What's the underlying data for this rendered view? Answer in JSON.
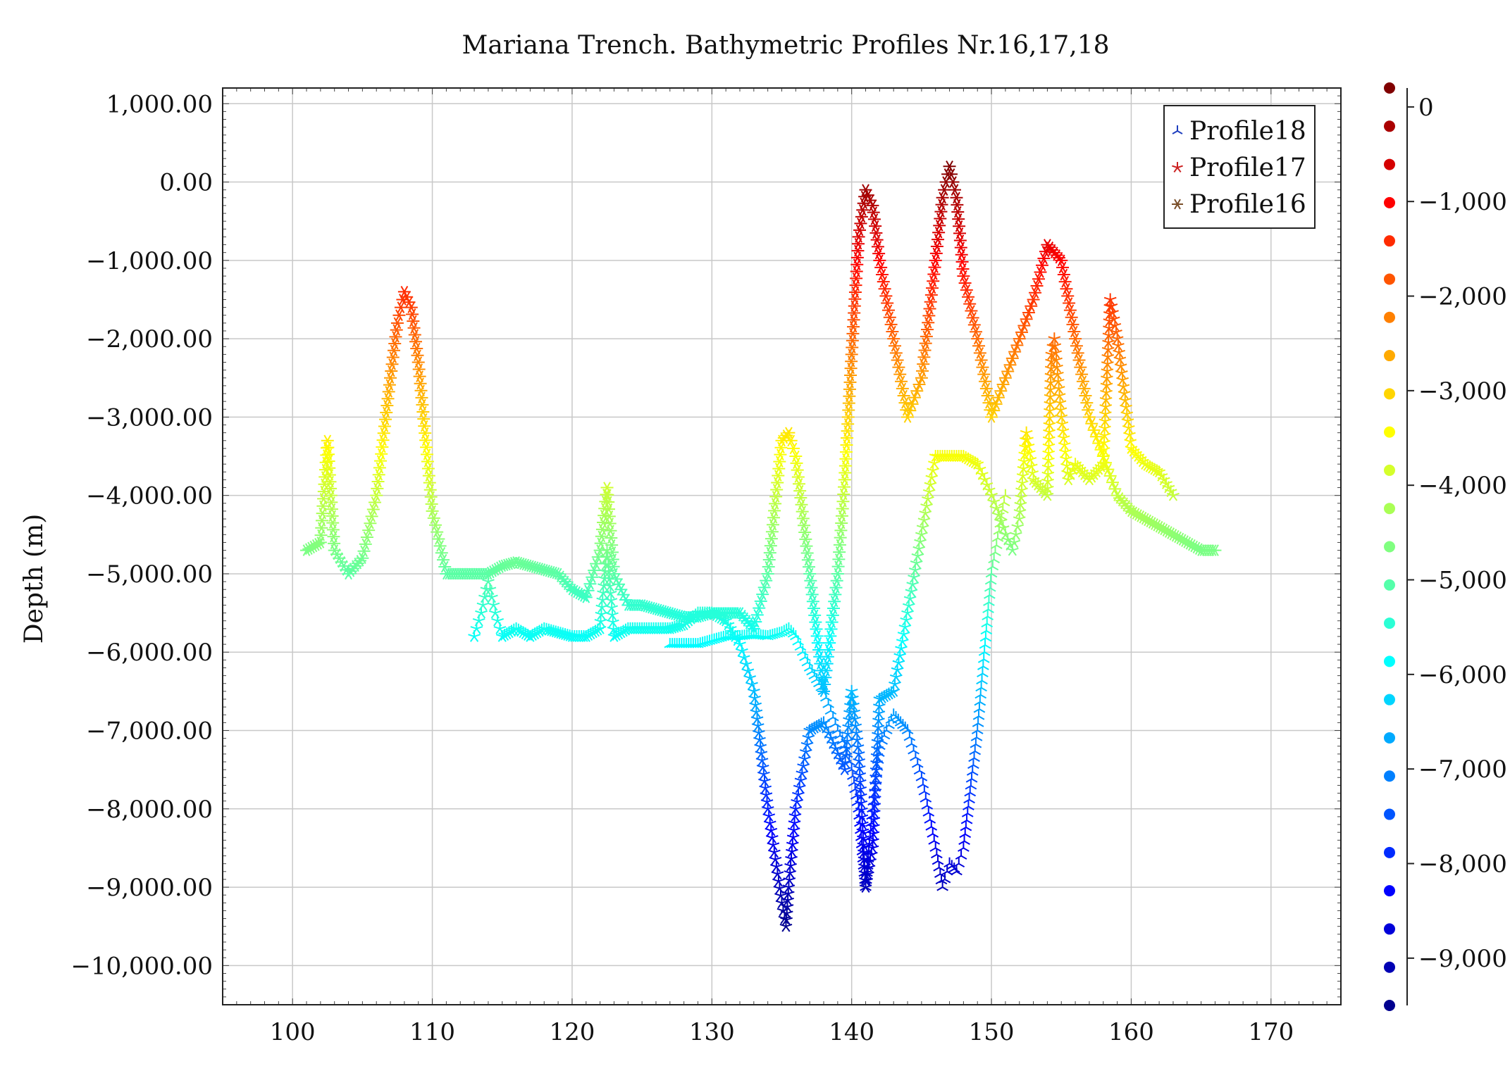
{
  "chart_data": {
    "type": "scatter",
    "title": "Mariana Trench. Bathymetric Profiles Nr.16,17,18",
    "xlabel": "",
    "ylabel": "Depth (m)",
    "xlim": [
      95,
      175
    ],
    "ylim": [
      -10500,
      1200
    ],
    "x_ticks": [
      100,
      110,
      120,
      130,
      140,
      150,
      160,
      170
    ],
    "x_tick_labels": [
      "100",
      "110",
      "120",
      "130",
      "140",
      "150",
      "160",
      "170"
    ],
    "y_ticks": [
      1000,
      0,
      -1000,
      -2000,
      -3000,
      -4000,
      -5000,
      -6000,
      -7000,
      -8000,
      -9000,
      -10000
    ],
    "y_tick_labels": [
      "1,000.00",
      "0.00",
      "−1,000.00",
      "−2,000.00",
      "−3,000.00",
      "−4,000.00",
      "−5,000.00",
      "−6,000.00",
      "−7,000.00",
      "−8,000.00",
      "−9,000.00",
      "−10,000.00"
    ],
    "grid": true,
    "legend_position": "top-right",
    "colormap": [
      "#00008f",
      "#0000ff",
      "#0080ff",
      "#00ffff",
      "#80ff80",
      "#ffff00",
      "#ff8000",
      "#ff0000",
      "#800000"
    ],
    "colorbar": {
      "range": [
        -9500,
        200
      ],
      "ticks": [
        0,
        -1000,
        -2000,
        -3000,
        -4000,
        -5000,
        -6000,
        -7000,
        -8000,
        -9000
      ],
      "tick_labels": [
        "0",
        "−1,000",
        "−2,000",
        "−3,000",
        "−4,000",
        "−5,000",
        "−6,000",
        "−7,000",
        "−8,000",
        "−9,000"
      ],
      "markers": 25
    },
    "series": [
      {
        "name": "Profile18",
        "marker": "tri",
        "legend_color": "#1f3fbf",
        "x": [
          127,
          128,
          129,
          130,
          131,
          132,
          133,
          134,
          135,
          135.5,
          136,
          137,
          138,
          139,
          139.5,
          140,
          140.5,
          141,
          141.5,
          142,
          143,
          144,
          145,
          146,
          146.5,
          147,
          147.5,
          148,
          149,
          150,
          151
        ],
        "y": [
          -5900,
          -5900,
          -5900,
          -5850,
          -5800,
          -5800,
          -5780,
          -5800,
          -5750,
          -5700,
          -5800,
          -6200,
          -6500,
          -7000,
          -7200,
          -7500,
          -8000,
          -9000,
          -8000,
          -7200,
          -6800,
          -7000,
          -7600,
          -8500,
          -9000,
          -8700,
          -8800,
          -8500,
          -7000,
          -5000,
          -4000
        ]
      },
      {
        "name": "Profile17",
        "marker": "star",
        "legend_color": "#cc2222",
        "x": [
          113,
          113.5,
          114,
          114.5,
          115,
          116,
          117,
          118,
          119,
          120,
          121,
          122,
          122.5,
          123,
          124,
          125,
          126,
          127,
          128,
          129,
          130,
          131,
          132,
          133,
          134,
          135,
          135.3,
          135.5,
          136,
          137,
          138,
          139,
          139.5,
          140,
          140.5,
          141,
          141.5,
          142,
          143,
          144,
          145,
          146,
          147,
          148,
          149,
          150,
          151,
          151.5,
          152,
          152.5,
          153,
          154,
          154.3,
          154.5,
          155,
          155.5,
          156,
          157,
          158,
          158.5,
          159,
          160,
          161,
          162,
          163
        ],
        "y": [
          -5800,
          -5500,
          -5100,
          -5500,
          -5800,
          -5700,
          -5800,
          -5700,
          -5750,
          -5800,
          -5800,
          -5700,
          -4700,
          -5800,
          -5700,
          -5700,
          -5700,
          -5700,
          -5650,
          -5500,
          -5500,
          -5600,
          -5900,
          -6500,
          -8000,
          -9200,
          -9500,
          -9000,
          -8000,
          -7000,
          -6900,
          -7300,
          -7500,
          -6500,
          -7300,
          -9000,
          -8500,
          -6600,
          -6500,
          -5500,
          -4500,
          -3500,
          -3500,
          -3500,
          -3600,
          -4000,
          -4500,
          -4700,
          -4300,
          -3200,
          -3800,
          -4000,
          -2200,
          -2000,
          -3000,
          -3800,
          -3600,
          -3800,
          -3600,
          -1500,
          -2000,
          -3400,
          -3600,
          -3700,
          -4000
        ]
      },
      {
        "name": "Profile16",
        "marker": "asterisk",
        "legend_color": "#7a4f2a",
        "x": [
          101,
          102,
          102.5,
          103,
          104,
          105,
          106,
          107,
          107.5,
          108,
          108.5,
          109,
          110,
          111,
          112,
          114,
          115,
          116,
          117,
          118,
          119,
          120,
          121,
          122,
          122.5,
          123,
          124,
          125,
          126,
          127,
          128,
          129,
          130,
          131,
          132,
          133,
          134,
          135,
          135.5,
          136,
          137,
          138,
          139,
          139.5,
          140,
          140.5,
          141,
          141.5,
          142,
          143,
          144,
          145,
          146,
          146.5,
          147,
          147.5,
          148,
          149,
          150,
          151,
          152,
          153,
          154,
          155,
          156,
          157,
          158,
          159,
          160,
          161,
          162,
          163,
          164,
          165,
          166
        ],
        "y": [
          -4700,
          -4600,
          -3300,
          -4700,
          -5000,
          -4800,
          -4000,
          -2500,
          -1800,
          -1400,
          -1600,
          -2300,
          -4200,
          -5000,
          -5000,
          -5000,
          -4900,
          -4850,
          -4900,
          -4950,
          -5000,
          -5200,
          -5300,
          -4700,
          -3900,
          -5000,
          -5400,
          -5400,
          -5450,
          -5500,
          -5550,
          -5550,
          -5500,
          -5500,
          -5500,
          -5700,
          -5000,
          -3300,
          -3200,
          -3500,
          -5000,
          -6500,
          -5000,
          -3800,
          -2200,
          -700,
          -100,
          -300,
          -1000,
          -2000,
          -3000,
          -2500,
          -1000,
          -200,
          200,
          -200,
          -1200,
          -2000,
          -3000,
          -2500,
          -2000,
          -1500,
          -800,
          -1000,
          -2000,
          -3000,
          -3500,
          -4000,
          -4200,
          -4300,
          -4400,
          -4500,
          -4600,
          -4700,
          -4700
        ]
      }
    ]
  }
}
